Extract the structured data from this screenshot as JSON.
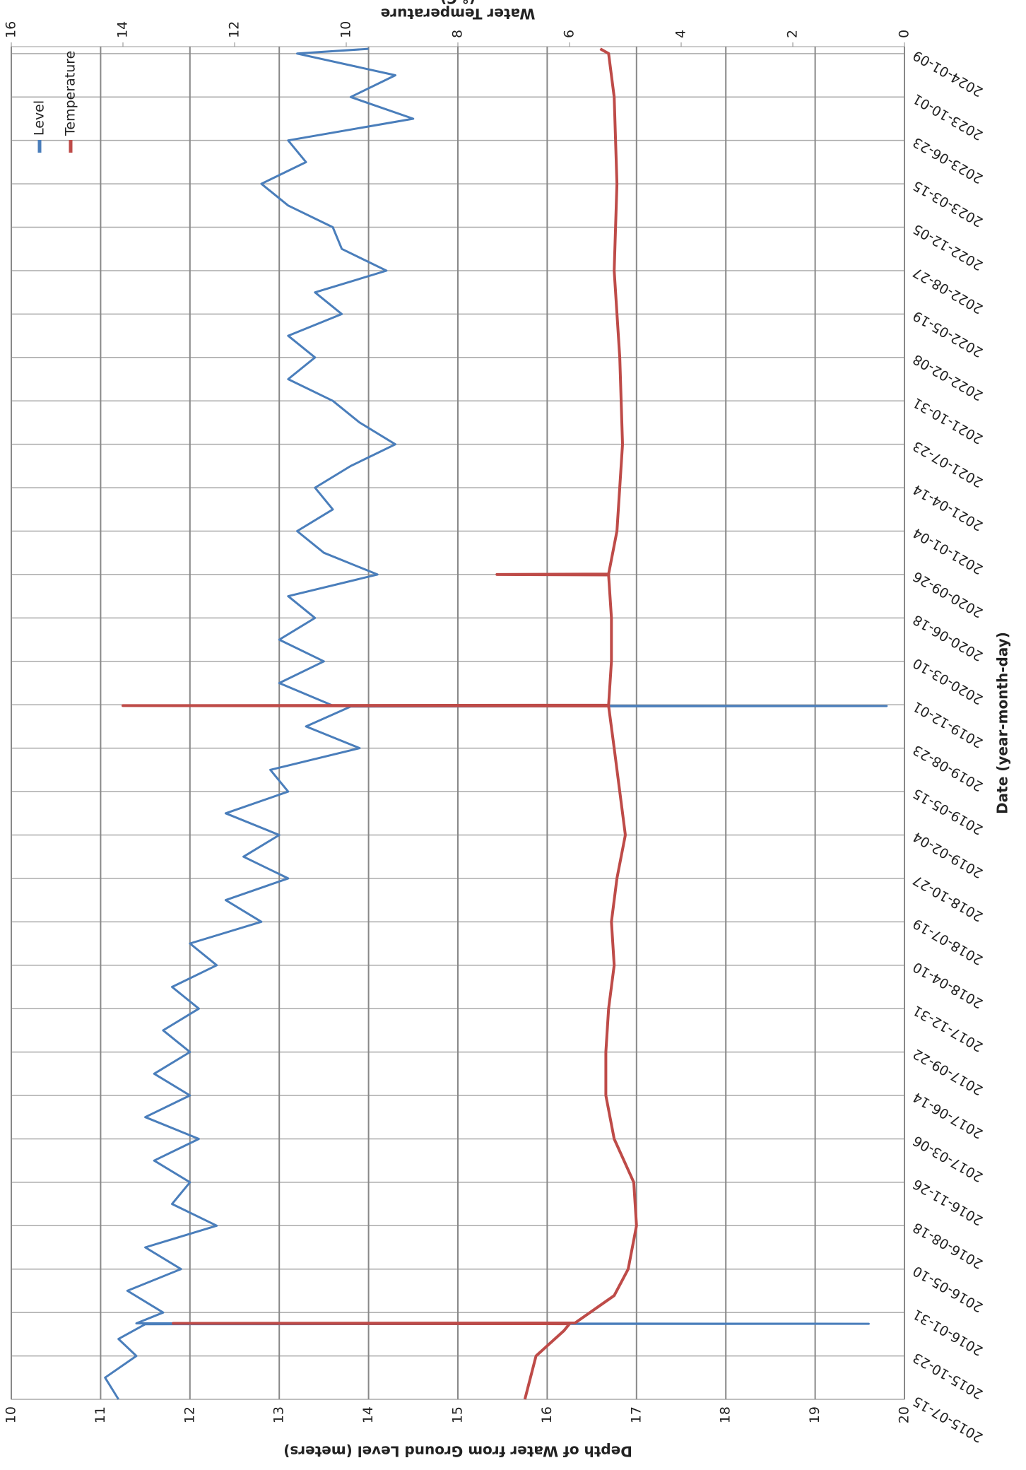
{
  "chart_data": {
    "type": "line",
    "y_title": "Depth of Water from Ground Level (meters)",
    "y2_title": [
      "Water Temperature",
      "(° C)"
    ],
    "x_title": "Date (year-month-day)",
    "xlim": [
      "2015-07-15",
      "2024-01-25"
    ],
    "xticks": [
      "2015-07-15",
      "2015-10-23",
      "2016-01-31",
      "2016-05-10",
      "2016-08-18",
      "2016-11-26",
      "2017-03-06",
      "2017-06-14",
      "2017-09-22",
      "2017-12-31",
      "2018-04-10",
      "2018-07-19",
      "2018-10-27",
      "2019-02-04",
      "2019-05-15",
      "2019-08-23",
      "2019-12-01",
      "2020-03-10",
      "2020-06-18",
      "2020-09-26",
      "2021-01-04",
      "2021-04-14",
      "2021-07-23",
      "2021-10-31",
      "2022-02-08",
      "2022-05-19",
      "2022-08-27",
      "2022-12-05",
      "2023-03-15",
      "2023-06-23",
      "2023-10-01",
      "2024-01-09"
    ],
    "ylim": [
      20,
      10
    ],
    "yticks": [
      10,
      11,
      12,
      13,
      14,
      15,
      16,
      17,
      18,
      19,
      20
    ],
    "y2lim": [
      0,
      16
    ],
    "y2ticks": [
      0,
      2,
      4,
      6,
      8,
      10,
      12,
      14,
      16
    ],
    "grid": true,
    "legend": "upper right",
    "series": [
      {
        "name": "Level",
        "color": "#4a7ebb",
        "x": [
          "2015-07-15",
          "2015-09-03",
          "2015-10-23",
          "2015-12-01",
          "2016-01-04",
          "2016-01-05",
          "2016-01-06",
          "2016-01-31",
          "2016-03-21",
          "2016-05-10",
          "2016-06-29",
          "2016-08-18",
          "2016-10-07",
          "2016-11-26",
          "2017-01-15",
          "2017-03-06",
          "2017-04-25",
          "2017-06-14",
          "2017-08-03",
          "2017-09-22",
          "2017-11-11",
          "2017-12-31",
          "2018-02-19",
          "2018-04-10",
          "2018-05-30",
          "2018-07-19",
          "2018-09-07",
          "2018-10-27",
          "2018-12-16",
          "2019-02-04",
          "2019-03-26",
          "2019-05-15",
          "2019-07-04",
          "2019-08-23",
          "2019-10-12",
          "2019-11-27",
          "2019-11-28",
          "2019-11-29",
          "2020-01-20",
          "2020-03-10",
          "2020-04-29",
          "2020-06-18",
          "2020-08-07",
          "2020-09-26",
          "2020-11-15",
          "2021-01-04",
          "2021-02-23",
          "2021-04-14",
          "2021-06-03",
          "2021-07-23",
          "2021-09-11",
          "2021-10-31",
          "2021-12-20",
          "2022-02-08",
          "2022-03-30",
          "2022-05-19",
          "2022-07-08",
          "2022-08-27",
          "2022-10-16",
          "2022-12-05",
          "2023-01-24",
          "2023-03-15",
          "2023-05-04",
          "2023-06-23",
          "2023-08-12",
          "2023-10-01",
          "2023-11-20",
          "2024-01-09",
          "2024-01-20"
        ],
        "values": [
          11.2,
          11.05,
          11.4,
          11.2,
          11.5,
          19.6,
          11.4,
          11.7,
          11.3,
          11.9,
          11.5,
          12.3,
          11.8,
          12.0,
          11.6,
          12.1,
          11.5,
          12.0,
          11.6,
          12.0,
          11.7,
          12.1,
          11.8,
          12.3,
          12.0,
          12.8,
          12.4,
          13.1,
          12.6,
          13.0,
          12.4,
          13.1,
          12.9,
          13.9,
          13.3,
          13.8,
          19.8,
          13.6,
          13.0,
          13.5,
          13.0,
          13.4,
          13.1,
          14.1,
          13.5,
          13.2,
          13.6,
          13.4,
          13.8,
          14.3,
          13.9,
          13.6,
          13.1,
          13.4,
          13.1,
          13.7,
          13.4,
          14.2,
          13.7,
          13.6,
          13.1,
          12.8,
          13.3,
          13.1,
          14.5,
          13.8,
          14.3,
          13.2,
          14.0
        ]
      },
      {
        "name": "Temperature",
        "color": "#be4b48",
        "axis": "y2",
        "x": [
          "2015-07-15",
          "2015-10-23",
          "2015-12-20",
          "2016-01-05",
          "2016-01-06",
          "2016-01-07",
          "2016-03-10",
          "2016-05-10",
          "2016-08-18",
          "2016-11-26",
          "2017-03-06",
          "2017-06-14",
          "2017-09-22",
          "2017-12-31",
          "2018-04-10",
          "2018-07-19",
          "2018-10-27",
          "2019-02-04",
          "2019-05-15",
          "2019-08-23",
          "2019-11-28",
          "2019-11-29",
          "2019-11-30",
          "2020-03-10",
          "2020-06-18",
          "2020-09-25",
          "2020-09-26",
          "2020-09-27",
          "2021-01-04",
          "2021-07-23",
          "2022-02-08",
          "2022-08-27",
          "2023-03-15",
          "2023-10-01",
          "2024-01-09",
          "2024-01-20"
        ],
        "values": [
          6.8,
          6.6,
          6.1,
          6.0,
          13.1,
          5.9,
          5.2,
          4.95,
          4.8,
          4.85,
          5.2,
          5.35,
          5.35,
          5.3,
          5.2,
          5.25,
          5.15,
          5.0,
          5.1,
          5.2,
          5.3,
          14.0,
          5.3,
          5.25,
          5.25,
          5.3,
          7.3,
          5.3,
          5.15,
          5.05,
          5.1,
          5.2,
          5.15,
          5.2,
          5.3,
          5.45
        ]
      }
    ]
  }
}
